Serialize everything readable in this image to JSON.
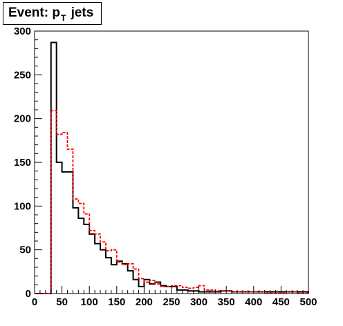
{
  "chart_data": {
    "type": "histogram",
    "title": "Event: p",
    "title_sub": "T",
    "title_suffix": "jets",
    "xlim": [
      0,
      500
    ],
    "ylim": [
      0,
      300
    ],
    "bin_width": 10,
    "x_ticks": [
      0,
      50,
      100,
      150,
      200,
      250,
      300,
      350,
      400,
      450,
      500
    ],
    "y_ticks": [
      0,
      50,
      100,
      150,
      200,
      250,
      300
    ],
    "x_tick_labels": [
      "0",
      "50",
      "100",
      "150",
      "200",
      "250",
      "300",
      "350",
      "400",
      "450",
      "500"
    ],
    "y_tick_labels": [
      "0",
      "50",
      "100",
      "150",
      "200",
      "250",
      "300"
    ],
    "bin_edges_start": 0,
    "series": [
      {
        "style": "solid",
        "color": "#000000",
        "values": [
          0,
          0,
          0,
          287,
          150,
          139,
          139,
          98,
          86,
          79,
          68,
          57,
          50,
          41,
          33,
          37,
          34,
          26,
          16,
          8,
          16,
          11,
          13,
          9,
          8,
          8,
          4,
          4,
          3,
          3,
          2,
          2,
          2,
          2,
          3,
          3,
          2,
          2,
          2,
          2,
          2,
          2,
          2,
          2,
          2,
          2,
          2,
          2,
          2,
          2
        ]
      },
      {
        "style": "dashed",
        "color": "#ff0000",
        "values": [
          0,
          0,
          0,
          209,
          182,
          184,
          165,
          108,
          103,
          91,
          72,
          68,
          59,
          49,
          50,
          36,
          33,
          34,
          28,
          17,
          13,
          15,
          11,
          8,
          8,
          9,
          9,
          7,
          6,
          7,
          9,
          4,
          4,
          3,
          3,
          3,
          2,
          2,
          2,
          2,
          2,
          2,
          1,
          1,
          1,
          1,
          2,
          2,
          1,
          1
        ]
      }
    ]
  },
  "colors": {
    "axis": "#000000",
    "background": "#ffffff"
  }
}
